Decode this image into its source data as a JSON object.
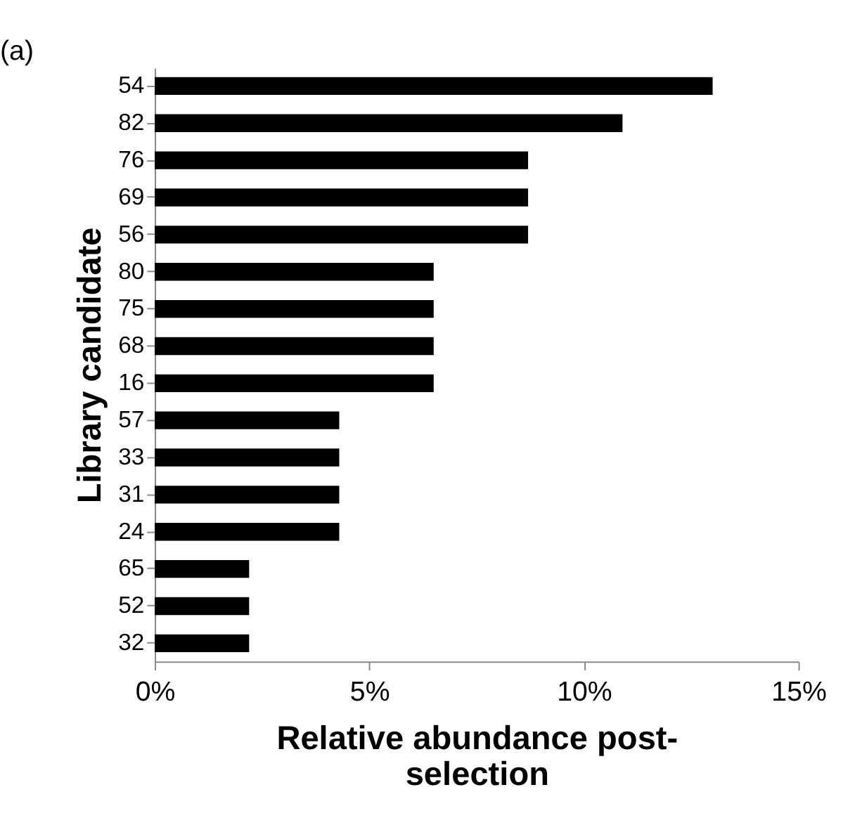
{
  "chart_data": {
    "type": "bar",
    "orientation": "horizontal",
    "categories": [
      "54",
      "82",
      "76",
      "69",
      "56",
      "80",
      "75",
      "68",
      "16",
      "57",
      "33",
      "31",
      "24",
      "65",
      "52",
      "32"
    ],
    "values": [
      13.0,
      10.9,
      8.7,
      8.7,
      8.7,
      6.5,
      6.5,
      6.5,
      6.5,
      4.3,
      4.3,
      4.3,
      4.3,
      2.2,
      2.2,
      2.2
    ],
    "color": "#000000",
    "xlim": [
      0,
      15
    ],
    "xticks": [
      {
        "value": 0,
        "label": "0%"
      },
      {
        "value": 5,
        "label": "5%"
      },
      {
        "value": 10,
        "label": "10%"
      },
      {
        "value": 15,
        "label": "15%"
      }
    ],
    "xlabel": "Relative abundance post-selection",
    "ylabel": "Library candidate",
    "annotations": [
      "(a)"
    ],
    "grid": false
  }
}
